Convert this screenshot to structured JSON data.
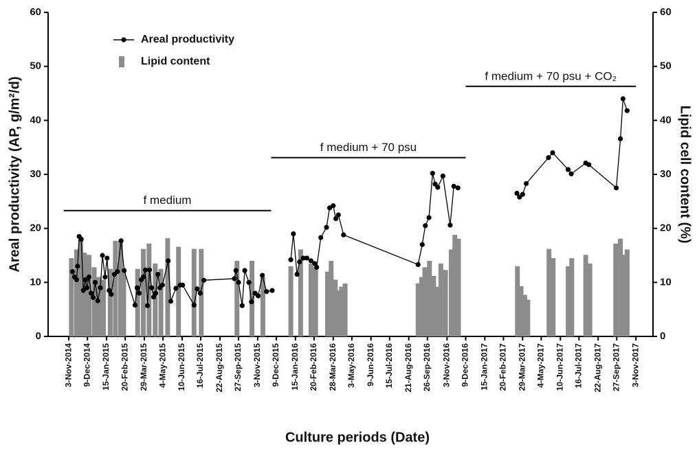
{
  "chart_data": {
    "type": "combo",
    "xlabel": "Culture periods (Date)",
    "ylabel": "Areal productivity (AP, g/m²/d)",
    "y2label": "Lipid cell content (%)",
    "legend": "top-left",
    "xlim": [
      "2014-09-24",
      "2017-12-06"
    ],
    "ylim": [
      0,
      60
    ],
    "y2lim": [
      0,
      60
    ],
    "yticks": [
      0,
      10,
      20,
      30,
      40,
      50,
      60
    ],
    "y2ticks": [
      0,
      10,
      20,
      30,
      40,
      50,
      60
    ],
    "xticks": [
      {
        "value": "2014-11-03",
        "label": "3-Nov-2014"
      },
      {
        "value": "2014-12-09",
        "label": "9-Dec-2014"
      },
      {
        "value": "2015-01-15",
        "label": "15-Jan-2015"
      },
      {
        "value": "2015-02-20",
        "label": "20-Feb-2015"
      },
      {
        "value": "2015-03-29",
        "label": "29-Mar-2015"
      },
      {
        "value": "2015-05-04",
        "label": "4-May-2015"
      },
      {
        "value": "2015-06-10",
        "label": "10-Jun-2015"
      },
      {
        "value": "2015-07-16",
        "label": "16-Jul-2015"
      },
      {
        "value": "2015-08-22",
        "label": "22-Aug-2015"
      },
      {
        "value": "2015-09-27",
        "label": "27-Sep-2015"
      },
      {
        "value": "2015-11-03",
        "label": "3-Nov-2015"
      },
      {
        "value": "2015-12-09",
        "label": "9-Dec-2015"
      },
      {
        "value": "2016-01-15",
        "label": "15-Jan-2016"
      },
      {
        "value": "2016-02-20",
        "label": "20-Feb-2016"
      },
      {
        "value": "2016-03-28",
        "label": "28-Mar-2016"
      },
      {
        "value": "2016-05-03",
        "label": "3-May-2016"
      },
      {
        "value": "2016-06-09",
        "label": "9-Jun-2016"
      },
      {
        "value": "2016-07-15",
        "label": "15-Jul-2016"
      },
      {
        "value": "2016-08-21",
        "label": "21-Aug-2016"
      },
      {
        "value": "2016-09-26",
        "label": "26-Sep-2016"
      },
      {
        "value": "2016-11-03",
        "label": "3-Nov-2016"
      },
      {
        "value": "2016-12-09",
        "label": "9-Dec-2016"
      },
      {
        "value": "2017-01-15",
        "label": "15-Jan-2017"
      },
      {
        "value": "2017-02-20",
        "label": "20-Feb-2017"
      },
      {
        "value": "2017-03-29",
        "label": "29-Mar-2017"
      },
      {
        "value": "2017-05-04",
        "label": "4-May-2017"
      },
      {
        "value": "2017-06-10",
        "label": "10-Jun-2017"
      },
      {
        "value": "2017-07-16",
        "label": "16-Jul-2017"
      },
      {
        "value": "2017-08-22",
        "label": "22-Aug-2017"
      },
      {
        "value": "2017-09-27",
        "label": "27-Sep-2017"
      },
      {
        "value": "2017-11-03",
        "label": "3-Nov-2017"
      }
    ],
    "series": [
      {
        "name": "Lipid content",
        "type": "bar",
        "axis": "y2",
        "color": "#8c8c8c",
        "x": [
          "2014-11-08",
          "2014-11-18",
          "2014-11-26",
          "2014-12-03",
          "2014-12-12",
          "2014-12-22",
          "2014-12-31",
          "2015-01-09",
          "2015-01-22",
          "2015-02-01",
          "2015-02-11",
          "2015-02-17",
          "2015-03-16",
          "2015-03-27",
          "2015-04-07",
          "2015-04-19",
          "2015-04-30",
          "2015-05-13",
          "2015-06-03",
          "2015-07-03",
          "2015-07-17",
          "2015-09-24",
          "2015-10-23",
          "2015-11-13",
          "2016-01-06",
          "2016-01-25",
          "2016-02-14",
          "2016-02-23",
          "2016-03-17",
          "2016-03-24",
          "2016-04-01",
          "2016-04-07",
          "2016-04-13",
          "2016-04-20",
          "2016-09-08",
          "2016-09-15",
          "2016-09-21",
          "2016-09-30",
          "2016-10-08",
          "2016-10-15",
          "2016-10-22",
          "2016-10-31",
          "2016-11-11",
          "2016-11-18",
          "2016-11-25",
          "2017-03-19",
          "2017-03-26",
          "2017-04-02",
          "2017-04-08",
          "2017-05-19",
          "2017-05-27",
          "2017-06-25",
          "2017-07-02",
          "2017-07-29",
          "2017-08-06",
          "2017-09-25",
          "2017-10-04",
          "2017-10-11",
          "2017-10-17"
        ],
        "values": [
          14.5,
          16.1,
          17.8,
          15.5,
          15.1,
          12.8,
          11.0,
          10.5,
          12.5,
          17.7,
          17.7,
          12.0,
          12.5,
          16.2,
          17.2,
          13.5,
          12.5,
          18.2,
          16.6,
          16.2,
          16.2,
          14.0,
          14.0,
          11.0,
          13.0,
          16.1,
          13.5,
          12.8,
          12.0,
          14.0,
          10.5,
          8.5,
          9.2,
          9.8,
          9.8,
          11.0,
          12.8,
          14.0,
          11.2,
          9.2,
          13.5,
          12.3,
          16.1,
          18.8,
          18.1,
          13.0,
          9.3,
          7.7,
          6.8,
          16.2,
          14.5,
          13.0,
          14.5,
          15.1,
          13.5,
          17.2,
          18.1,
          15.1,
          16.1
        ]
      },
      {
        "name": "Areal productivity",
        "type": "line",
        "axis": "y",
        "color": "#000000",
        "x": [
          "2014-11-10",
          "2014-11-14",
          "2014-11-18",
          "2014-11-20",
          "2014-11-23",
          "2014-11-27",
          "2014-12-01",
          "2014-12-05",
          "2014-12-08",
          "2014-12-12",
          "2014-12-16",
          "2014-12-20",
          "2014-12-24",
          "2014-12-29",
          "2015-01-03",
          "2015-01-07",
          "2015-01-12",
          "2015-01-16",
          "2015-01-20",
          "2015-01-24",
          "2015-01-30",
          "2015-02-05",
          "2015-02-12",
          "2015-02-18",
          "2015-03-11",
          "2015-03-15",
          "2015-03-19",
          "2015-03-23",
          "2015-03-27",
          "2015-03-31",
          "2015-04-04",
          "2015-04-08",
          "2015-04-12",
          "2015-04-16",
          "2015-04-20",
          "2015-04-24",
          "2015-04-28",
          "2015-05-03",
          "2015-05-14",
          "2015-05-19",
          "2015-05-29",
          "2015-06-06",
          "2015-06-11",
          "2015-07-03",
          "2015-07-09",
          "2015-07-15",
          "2015-07-22",
          "2015-09-19",
          "2015-09-22",
          "2015-09-27",
          "2015-10-04",
          "2015-10-09",
          "2015-10-17",
          "2015-10-22",
          "2015-10-29",
          "2015-11-04",
          "2015-11-12",
          "2015-11-20",
          "2015-12-01",
          null,
          "2016-01-06",
          "2016-01-11",
          "2016-01-18",
          "2016-01-23",
          "2016-01-30",
          "2016-02-06",
          "2016-02-14",
          "2016-02-21",
          "2016-02-25",
          "2016-03-04",
          "2016-03-15",
          "2016-03-21",
          "2016-03-28",
          "2016-04-02",
          "2016-04-07",
          "2016-04-17",
          "2016-09-08",
          "2016-09-16",
          "2016-09-22",
          "2016-09-29",
          "2016-10-06",
          "2016-10-11",
          "2016-10-16",
          "2016-10-26",
          "2016-11-09",
          "2016-11-16",
          "2016-11-24",
          null,
          "2017-03-18",
          "2017-03-23",
          "2017-03-29",
          "2017-04-05",
          "2017-05-18",
          "2017-05-26",
          "2017-06-25",
          "2017-07-01",
          "2017-07-29",
          "2017-08-04",
          "2017-09-26",
          "2017-10-04",
          "2017-10-09",
          "2017-10-17"
        ],
        "values": [
          12.0,
          11.0,
          10.5,
          13.0,
          18.5,
          18.0,
          8.5,
          10.5,
          9.0,
          11.0,
          8.0,
          7.2,
          10.0,
          6.6,
          9.0,
          15.0,
          11.0,
          14.5,
          8.5,
          7.8,
          11.5,
          12.0,
          17.7,
          12.2,
          5.8,
          9.0,
          8.0,
          10.5,
          11.0,
          12.3,
          5.7,
          12.3,
          9.0,
          7.3,
          8.0,
          11.5,
          9.0,
          9.5,
          14.0,
          6.5,
          8.9,
          9.5,
          9.5,
          5.8,
          8.8,
          8.0,
          10.4,
          10.7,
          12.2,
          10.0,
          5.7,
          12.2,
          10.0,
          6.4,
          8.0,
          7.5,
          11.3,
          8.3,
          8.5,
          null,
          14.2,
          19.0,
          11.5,
          13.8,
          14.5,
          14.5,
          14.0,
          13.5,
          12.8,
          18.3,
          20.2,
          23.8,
          24.2,
          21.8,
          22.5,
          18.8,
          13.3,
          17.0,
          20.5,
          22.0,
          30.2,
          28.2,
          27.6,
          29.7,
          20.6,
          27.8,
          27.5,
          null,
          26.5,
          25.8,
          26.3,
          28.3,
          33.1,
          34.0,
          30.9,
          30.1,
          32.1,
          31.8,
          27.5,
          36.6,
          44.0,
          41.8
        ]
      }
    ],
    "annotations": [
      {
        "text": "f medium",
        "x": [
          "2014-10-24",
          "2015-11-29"
        ],
        "y": 23.3
      },
      {
        "text": "f medium + 70 psu",
        "x": [
          "2015-11-29",
          "2016-12-09"
        ],
        "y": 33.1
      },
      {
        "text": "f medium + 70 psu + CO₂",
        "x": [
          "2016-12-09",
          "2017-11-03"
        ],
        "y": 46.3
      }
    ]
  }
}
